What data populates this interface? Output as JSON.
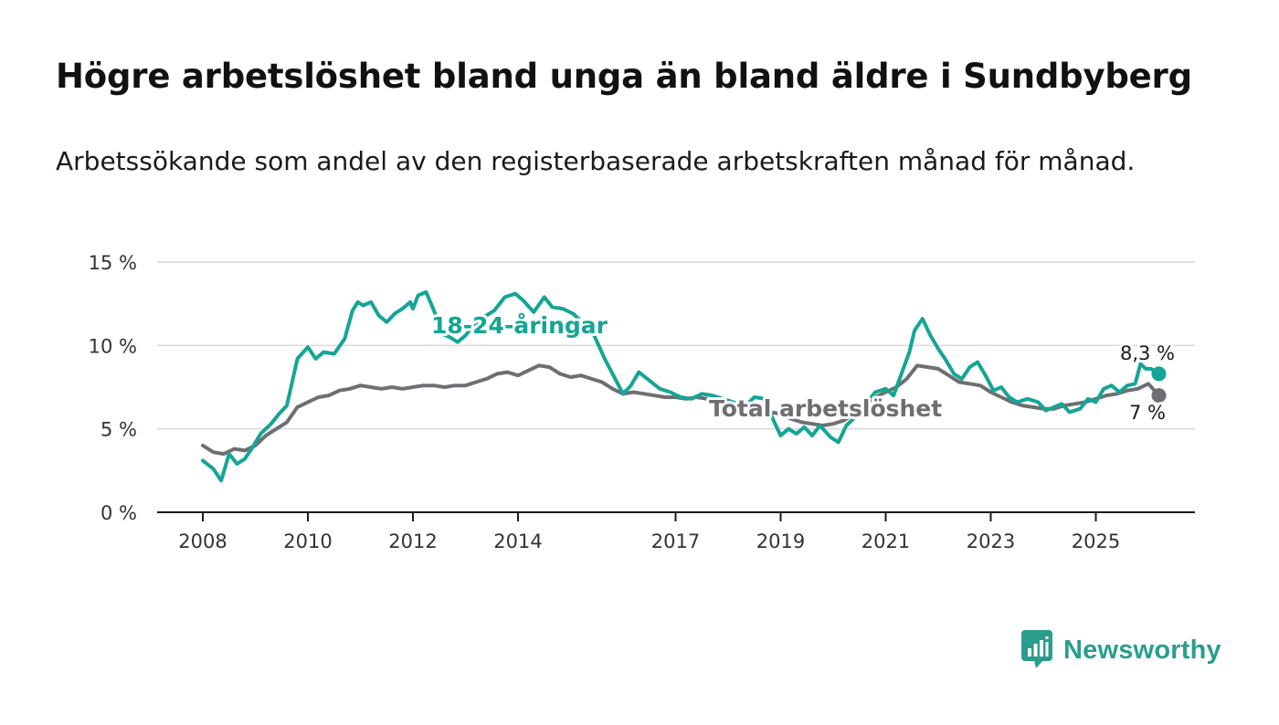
{
  "header": {
    "title": "Högre arbetslöshet bland unga än bland äldre i Sundbyberg",
    "subtitle": "Arbetssökande som andel av den registerbaserade arbetskraften månad för månad."
  },
  "brand": {
    "name": "Newsworthy",
    "icon": "bar-chart-speech-bubble-icon",
    "color": "#2a9d8f"
  },
  "chart_data": {
    "type": "line",
    "title": "Högre arbetslöshet bland unga än bland äldre i Sundbyberg",
    "xlabel": "",
    "ylabel": "",
    "xlim": [
      2008,
      2026
    ],
    "ylim": [
      0,
      15
    ],
    "grid": true,
    "y_ticks": [
      0,
      5,
      10,
      15
    ],
    "y_tick_labels": [
      "0 %",
      "5 %",
      "10 %",
      "15 %"
    ],
    "x_ticks": [
      2008,
      2010,
      2012,
      2014,
      2017,
      2019,
      2021,
      2023,
      2025
    ],
    "x_tick_labels": [
      "2008",
      "2010",
      "2012",
      "2014",
      "2017",
      "2019",
      "2021",
      "2023",
      "2025"
    ],
    "series": [
      {
        "name": "18-24-åringar",
        "label": "18-24-åringar",
        "color": "#14a595",
        "end_label": "8,3 %",
        "points": [
          [
            2008.0,
            3.1
          ],
          [
            2008.2,
            2.6
          ],
          [
            2008.35,
            1.9
          ],
          [
            2008.5,
            3.5
          ],
          [
            2008.65,
            2.9
          ],
          [
            2008.8,
            3.2
          ],
          [
            2008.95,
            3.9
          ],
          [
            2009.1,
            4.7
          ],
          [
            2009.3,
            5.3
          ],
          [
            2009.45,
            5.9
          ],
          [
            2009.6,
            6.4
          ],
          [
            2009.7,
            7.8
          ],
          [
            2009.8,
            9.2
          ],
          [
            2010.0,
            9.9
          ],
          [
            2010.15,
            9.2
          ],
          [
            2010.3,
            9.6
          ],
          [
            2010.5,
            9.5
          ],
          [
            2010.7,
            10.4
          ],
          [
            2010.85,
            12.1
          ],
          [
            2010.95,
            12.6
          ],
          [
            2011.05,
            12.4
          ],
          [
            2011.2,
            12.6
          ],
          [
            2011.35,
            11.8
          ],
          [
            2011.5,
            11.4
          ],
          [
            2011.65,
            11.9
          ],
          [
            2011.8,
            12.2
          ],
          [
            2011.95,
            12.6
          ],
          [
            2012.0,
            12.2
          ],
          [
            2012.1,
            13.0
          ],
          [
            2012.25,
            13.2
          ],
          [
            2012.4,
            12.1
          ],
          [
            2012.55,
            10.7
          ],
          [
            2012.7,
            10.5
          ],
          [
            2012.85,
            10.2
          ],
          [
            2013.0,
            10.6
          ],
          [
            2013.15,
            11.2
          ],
          [
            2013.35,
            11.7
          ],
          [
            2013.55,
            12.1
          ],
          [
            2013.75,
            12.9
          ],
          [
            2013.95,
            13.1
          ],
          [
            2014.1,
            12.7
          ],
          [
            2014.3,
            12.0
          ],
          [
            2014.5,
            12.9
          ],
          [
            2014.65,
            12.3
          ],
          [
            2014.85,
            12.2
          ],
          [
            2015.05,
            11.9
          ],
          [
            2015.25,
            11.3
          ],
          [
            2015.45,
            10.6
          ],
          [
            2015.65,
            9.2
          ],
          [
            2015.85,
            8.0
          ],
          [
            2016.0,
            7.1
          ],
          [
            2016.15,
            7.6
          ],
          [
            2016.3,
            8.4
          ],
          [
            2016.5,
            7.9
          ],
          [
            2016.7,
            7.4
          ],
          [
            2016.9,
            7.2
          ],
          [
            2017.1,
            6.9
          ],
          [
            2017.3,
            6.8
          ],
          [
            2017.5,
            7.1
          ],
          [
            2017.7,
            7.0
          ],
          [
            2017.9,
            6.8
          ],
          [
            2018.1,
            6.6
          ],
          [
            2018.3,
            6.3
          ],
          [
            2018.5,
            6.9
          ],
          [
            2018.7,
            6.8
          ],
          [
            2018.85,
            5.6
          ],
          [
            2019.0,
            4.6
          ],
          [
            2019.15,
            5.0
          ],
          [
            2019.3,
            4.7
          ],
          [
            2019.45,
            5.1
          ],
          [
            2019.6,
            4.6
          ],
          [
            2019.75,
            5.2
          ],
          [
            2019.95,
            4.5
          ],
          [
            2020.1,
            4.2
          ],
          [
            2020.25,
            5.2
          ],
          [
            2020.45,
            5.8
          ],
          [
            2020.6,
            6.4
          ],
          [
            2020.8,
            7.2
          ],
          [
            2021.0,
            7.4
          ],
          [
            2021.15,
            7.0
          ],
          [
            2021.3,
            8.3
          ],
          [
            2021.45,
            9.6
          ],
          [
            2021.55,
            10.9
          ],
          [
            2021.7,
            11.6
          ],
          [
            2021.85,
            10.6
          ],
          [
            2022.0,
            9.8
          ],
          [
            2022.15,
            9.1
          ],
          [
            2022.3,
            8.3
          ],
          [
            2022.45,
            8.0
          ],
          [
            2022.6,
            8.7
          ],
          [
            2022.75,
            9.0
          ],
          [
            2022.9,
            8.2
          ],
          [
            2023.05,
            7.3
          ],
          [
            2023.2,
            7.5
          ],
          [
            2023.35,
            6.9
          ],
          [
            2023.5,
            6.6
          ],
          [
            2023.7,
            6.8
          ],
          [
            2023.9,
            6.6
          ],
          [
            2024.05,
            6.1
          ],
          [
            2024.2,
            6.3
          ],
          [
            2024.35,
            6.5
          ],
          [
            2024.5,
            6.0
          ],
          [
            2024.7,
            6.2
          ],
          [
            2024.85,
            6.8
          ],
          [
            2025.0,
            6.6
          ],
          [
            2025.15,
            7.4
          ],
          [
            2025.3,
            7.6
          ],
          [
            2025.45,
            7.2
          ],
          [
            2025.6,
            7.6
          ],
          [
            2025.75,
            7.7
          ],
          [
            2025.85,
            8.9
          ],
          [
            2025.95,
            8.6
          ],
          [
            2026.05,
            8.6
          ],
          [
            2026.2,
            8.3
          ]
        ]
      },
      {
        "name": "Total arbetslöshet",
        "label": "Total arbetslöshet",
        "color": "#6e6e73",
        "end_label": "7 %",
        "points": [
          [
            2008.0,
            4.0
          ],
          [
            2008.2,
            3.6
          ],
          [
            2008.4,
            3.5
          ],
          [
            2008.6,
            3.8
          ],
          [
            2008.8,
            3.7
          ],
          [
            2009.0,
            4.0
          ],
          [
            2009.2,
            4.6
          ],
          [
            2009.4,
            5.0
          ],
          [
            2009.6,
            5.4
          ],
          [
            2009.8,
            6.3
          ],
          [
            2010.0,
            6.6
          ],
          [
            2010.2,
            6.9
          ],
          [
            2010.4,
            7.0
          ],
          [
            2010.6,
            7.3
          ],
          [
            2010.8,
            7.4
          ],
          [
            2011.0,
            7.6
          ],
          [
            2011.2,
            7.5
          ],
          [
            2011.4,
            7.4
          ],
          [
            2011.6,
            7.5
          ],
          [
            2011.8,
            7.4
          ],
          [
            2012.0,
            7.5
          ],
          [
            2012.2,
            7.6
          ],
          [
            2012.4,
            7.6
          ],
          [
            2012.6,
            7.5
          ],
          [
            2012.8,
            7.6
          ],
          [
            2013.0,
            7.6
          ],
          [
            2013.2,
            7.8
          ],
          [
            2013.4,
            8.0
          ],
          [
            2013.6,
            8.3
          ],
          [
            2013.8,
            8.4
          ],
          [
            2014.0,
            8.2
          ],
          [
            2014.2,
            8.5
          ],
          [
            2014.4,
            8.8
          ],
          [
            2014.6,
            8.7
          ],
          [
            2014.8,
            8.3
          ],
          [
            2015.0,
            8.1
          ],
          [
            2015.2,
            8.2
          ],
          [
            2015.4,
            8.0
          ],
          [
            2015.6,
            7.8
          ],
          [
            2015.8,
            7.4
          ],
          [
            2016.0,
            7.1
          ],
          [
            2016.2,
            7.2
          ],
          [
            2016.4,
            7.1
          ],
          [
            2016.6,
            7.0
          ],
          [
            2016.8,
            6.9
          ],
          [
            2017.0,
            6.9
          ],
          [
            2017.2,
            6.8
          ],
          [
            2017.4,
            6.9
          ],
          [
            2017.6,
            6.8
          ],
          [
            2017.8,
            6.6
          ],
          [
            2018.0,
            6.5
          ],
          [
            2018.2,
            6.4
          ],
          [
            2018.4,
            6.5
          ],
          [
            2018.6,
            6.2
          ],
          [
            2018.8,
            6.0
          ],
          [
            2019.0,
            5.9
          ],
          [
            2019.2,
            5.6
          ],
          [
            2019.4,
            5.4
          ],
          [
            2019.6,
            5.3
          ],
          [
            2019.8,
            5.2
          ],
          [
            2020.0,
            5.3
          ],
          [
            2020.2,
            5.5
          ],
          [
            2020.4,
            5.9
          ],
          [
            2020.6,
            6.4
          ],
          [
            2020.8,
            6.9
          ],
          [
            2021.0,
            7.2
          ],
          [
            2021.2,
            7.5
          ],
          [
            2021.4,
            8.0
          ],
          [
            2021.6,
            8.8
          ],
          [
            2021.8,
            8.7
          ],
          [
            2022.0,
            8.6
          ],
          [
            2022.2,
            8.2
          ],
          [
            2022.4,
            7.8
          ],
          [
            2022.6,
            7.7
          ],
          [
            2022.8,
            7.6
          ],
          [
            2023.0,
            7.2
          ],
          [
            2023.2,
            6.9
          ],
          [
            2023.4,
            6.6
          ],
          [
            2023.6,
            6.4
          ],
          [
            2023.8,
            6.3
          ],
          [
            2024.0,
            6.2
          ],
          [
            2024.2,
            6.2
          ],
          [
            2024.4,
            6.4
          ],
          [
            2024.6,
            6.5
          ],
          [
            2024.8,
            6.6
          ],
          [
            2025.0,
            6.8
          ],
          [
            2025.2,
            7.0
          ],
          [
            2025.4,
            7.1
          ],
          [
            2025.6,
            7.3
          ],
          [
            2025.8,
            7.4
          ],
          [
            2026.0,
            7.7
          ],
          [
            2026.2,
            7.0
          ]
        ]
      }
    ]
  }
}
